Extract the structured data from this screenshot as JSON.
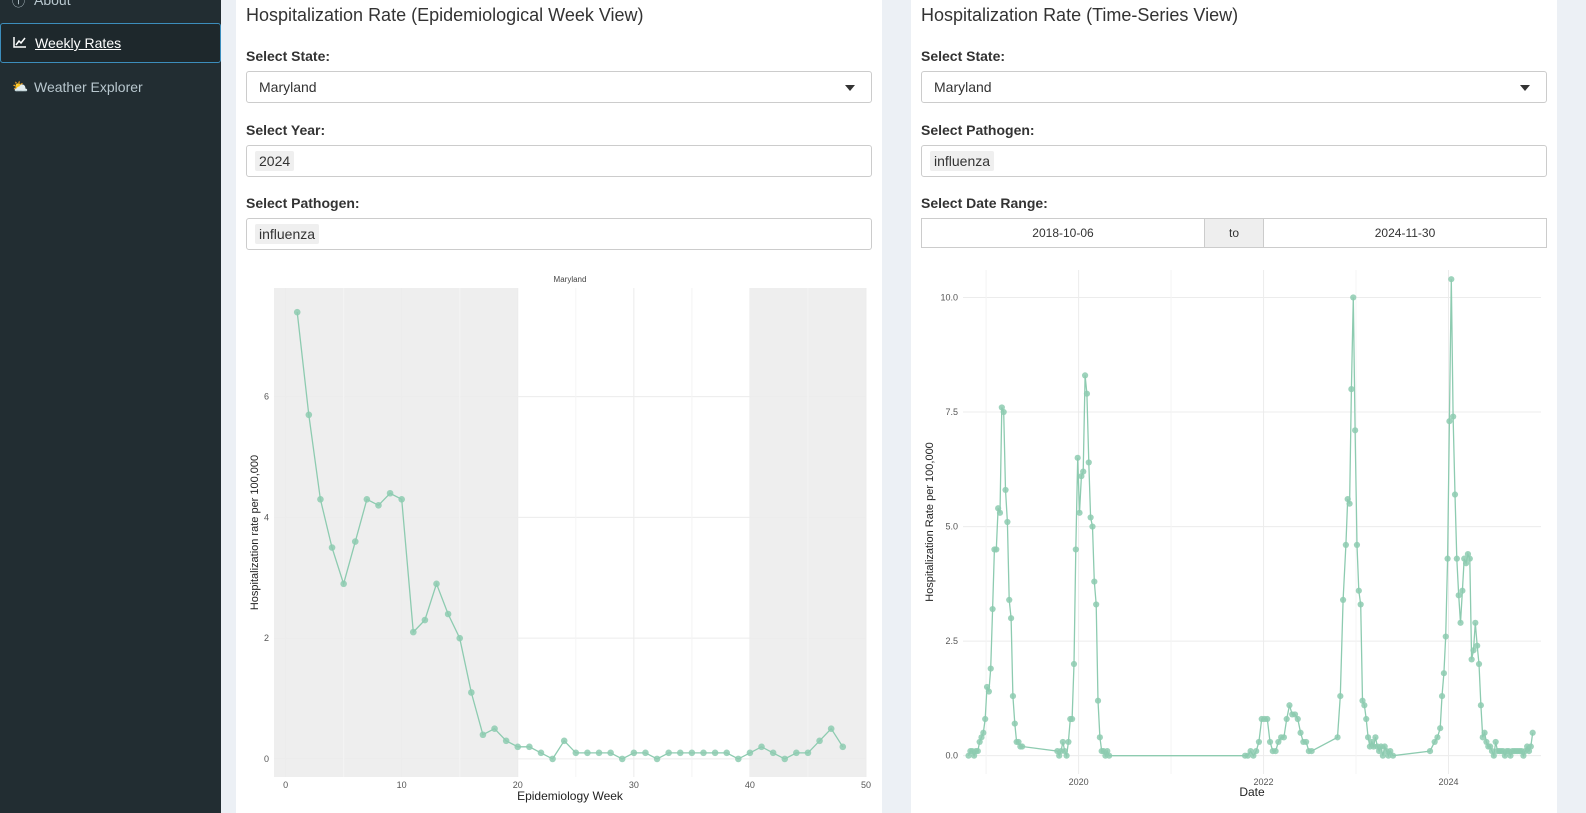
{
  "sidebar": {
    "items": [
      {
        "label": "About",
        "icon": "info-circle-icon"
      },
      {
        "label": "Weekly Rates",
        "icon": "line-chart-icon"
      },
      {
        "label": "Weather Explorer",
        "icon": "cloud-sun-icon"
      }
    ]
  },
  "left": {
    "title": "Hospitalization Rate (Epidemiological Week View)",
    "state_label": "Select State:",
    "state_value": "Maryland",
    "year_label": "Select Year:",
    "year_value": "2024",
    "pathogen_label": "Select Pathogen:",
    "pathogen_value": "influenza"
  },
  "right": {
    "title": "Hospitalization Rate (Time-Series View)",
    "state_label": "Select State:",
    "state_value": "Maryland",
    "pathogen_label": "Select Pathogen:",
    "pathogen_value": "influenza",
    "date_label": "Select Date Range:",
    "date_start": "2018-10-06",
    "date_sep": "to",
    "date_end": "2024-11-30"
  },
  "colors": {
    "series": "#8dcbb0",
    "shade": "#eeeeee",
    "grid": "#ececec"
  },
  "chart_data": [
    {
      "type": "line",
      "title": "Maryland",
      "xlabel": "Epidemiology Week",
      "ylabel": "Hospitalization rate per 100,000",
      "xlim": [
        -1,
        50
      ],
      "ylim": [
        -0.3,
        7.8
      ],
      "xticks": [
        0,
        10,
        20,
        30,
        40,
        50
      ],
      "yticks": [
        0,
        2,
        4,
        6
      ],
      "shaded_ranges": [
        [
          -1,
          20
        ],
        [
          40,
          50
        ]
      ],
      "x": [
        1,
        2,
        3,
        4,
        5,
        6,
        7,
        8,
        9,
        10,
        11,
        12,
        13,
        14,
        15,
        16,
        17,
        18,
        19,
        20,
        21,
        22,
        23,
        24,
        25,
        26,
        27,
        28,
        29,
        30,
        31,
        32,
        33,
        34,
        35,
        36,
        37,
        38,
        39,
        40,
        41,
        42,
        43,
        44,
        45,
        46,
        47,
        48
      ],
      "y": [
        7.4,
        5.7,
        4.3,
        3.5,
        2.9,
        3.6,
        4.3,
        4.2,
        4.4,
        4.3,
        2.1,
        2.3,
        2.9,
        2.4,
        2.0,
        1.1,
        0.4,
        0.5,
        0.3,
        0.2,
        0.2,
        0.1,
        0.0,
        0.3,
        0.1,
        0.1,
        0.1,
        0.1,
        0.0,
        0.1,
        0.1,
        0.0,
        0.1,
        0.1,
        0.1,
        0.1,
        0.1,
        0.1,
        0.0,
        0.1,
        0.2,
        0.1,
        0.0,
        0.1,
        0.1,
        0.3,
        0.5,
        0.2
      ]
    },
    {
      "type": "line",
      "title": "",
      "xlabel": "Date",
      "ylabel": "Hospitalization Rate per 100,000",
      "xlim": [
        2018.75,
        2025.0
      ],
      "ylim": [
        -0.4,
        10.6
      ],
      "xticks": [
        2020,
        2022,
        2024
      ],
      "yticks": [
        0.0,
        2.5,
        5.0,
        7.5,
        10.0
      ],
      "ytick_labels": [
        "0.0",
        "2.5",
        "5.0",
        "7.5",
        "10.0"
      ],
      "x": [
        2018.81,
        2018.83,
        2018.85,
        2018.87,
        2018.89,
        2018.91,
        2018.93,
        2018.95,
        2018.97,
        2018.99,
        2019.01,
        2019.03,
        2019.05,
        2019.07,
        2019.09,
        2019.11,
        2019.13,
        2019.15,
        2019.17,
        2019.19,
        2019.21,
        2019.23,
        2019.25,
        2019.27,
        2019.29,
        2019.31,
        2019.33,
        2019.35,
        2019.37,
        2019.39,
        2019.77,
        2019.79,
        2019.81,
        2019.83,
        2019.85,
        2019.87,
        2019.89,
        2019.91,
        2019.93,
        2019.95,
        2019.97,
        2019.99,
        2020.01,
        2020.03,
        2020.05,
        2020.07,
        2020.09,
        2020.11,
        2020.13,
        2020.15,
        2020.17,
        2020.19,
        2020.21,
        2020.23,
        2020.25,
        2020.27,
        2020.29,
        2020.31,
        2020.33,
        2021.8,
        2021.83,
        2021.86,
        2021.89,
        2021.92,
        2021.95,
        2021.98,
        2022.01,
        2022.04,
        2022.07,
        2022.1,
        2022.13,
        2022.16,
        2022.19,
        2022.22,
        2022.25,
        2022.28,
        2022.31,
        2022.34,
        2022.37,
        2022.4,
        2022.43,
        2022.46,
        2022.49,
        2022.52,
        2022.8,
        2022.83,
        2022.86,
        2022.89,
        2022.91,
        2022.93,
        2022.95,
        2022.97,
        2022.99,
        2023.01,
        2023.03,
        2023.05,
        2023.07,
        2023.09,
        2023.11,
        2023.13,
        2023.15,
        2023.17,
        2023.19,
        2023.21,
        2023.23,
        2023.25,
        2023.27,
        2023.29,
        2023.31,
        2023.33,
        2023.35,
        2023.37,
        2023.4,
        2023.8,
        2023.85,
        2023.88,
        2023.91,
        2023.93,
        2023.95,
        2023.97,
        2023.99,
        2024.01,
        2024.03,
        2024.05,
        2024.07,
        2024.09,
        2024.11,
        2024.13,
        2024.15,
        2024.17,
        2024.19,
        2024.21,
        2024.23,
        2024.25,
        2024.27,
        2024.29,
        2024.31,
        2024.33,
        2024.35,
        2024.37,
        2024.39,
        2024.41,
        2024.43,
        2024.45,
        2024.47,
        2024.49,
        2024.51,
        2024.53,
        2024.55,
        2024.57,
        2024.59,
        2024.61,
        2024.63,
        2024.65,
        2024.67,
        2024.69,
        2024.71,
        2024.73,
        2024.75,
        2024.77,
        2024.79,
        2024.81,
        2024.83,
        2024.85,
        2024.87,
        2024.89,
        2024.91
      ],
      "y": [
        0.0,
        0.1,
        0.1,
        0.0,
        0.1,
        0.1,
        0.3,
        0.4,
        0.5,
        0.8,
        1.5,
        1.4,
        1.9,
        3.2,
        4.5,
        4.5,
        5.4,
        5.3,
        7.6,
        7.5,
        5.8,
        5.1,
        3.4,
        3.0,
        1.3,
        0.7,
        0.3,
        0.3,
        0.2,
        0.2,
        0.1,
        0.0,
        0.1,
        0.3,
        0.1,
        0.0,
        0.3,
        0.8,
        0.8,
        2.0,
        4.5,
        6.5,
        5.3,
        6.1,
        6.2,
        8.3,
        7.9,
        6.4,
        5.2,
        5.0,
        3.8,
        3.3,
        1.2,
        0.4,
        0.1,
        0.1,
        0.0,
        0.1,
        0.0,
        0.0,
        0.0,
        0.1,
        0.0,
        0.1,
        0.3,
        0.8,
        0.8,
        0.8,
        0.3,
        0.1,
        0.1,
        0.3,
        0.4,
        0.4,
        0.8,
        1.1,
        0.9,
        0.9,
        0.8,
        0.5,
        0.3,
        0.3,
        0.1,
        0.1,
        0.4,
        1.3,
        3.4,
        4.6,
        5.6,
        5.5,
        8.0,
        10.0,
        7.1,
        4.6,
        3.6,
        3.3,
        1.2,
        1.1,
        0.8,
        0.4,
        0.2,
        0.3,
        0.2,
        0.4,
        0.2,
        0.1,
        0.2,
        0.0,
        0.2,
        0.1,
        0.0,
        0.1,
        0.0,
        0.1,
        0.3,
        0.4,
        0.6,
        1.3,
        1.8,
        2.6,
        4.3,
        7.3,
        10.4,
        7.4,
        5.7,
        4.3,
        3.5,
        2.9,
        3.6,
        4.3,
        4.2,
        4.4,
        4.3,
        2.1,
        2.3,
        2.9,
        2.4,
        2.0,
        1.1,
        0.4,
        0.5,
        0.3,
        0.2,
        0.2,
        0.1,
        0.0,
        0.3,
        0.1,
        0.1,
        0.1,
        0.1,
        0.0,
        0.1,
        0.1,
        0.0,
        0.1,
        0.1,
        0.1,
        0.1,
        0.1,
        0.1,
        0.0,
        0.1,
        0.2,
        0.1,
        0.2,
        0.5
      ]
    }
  ]
}
